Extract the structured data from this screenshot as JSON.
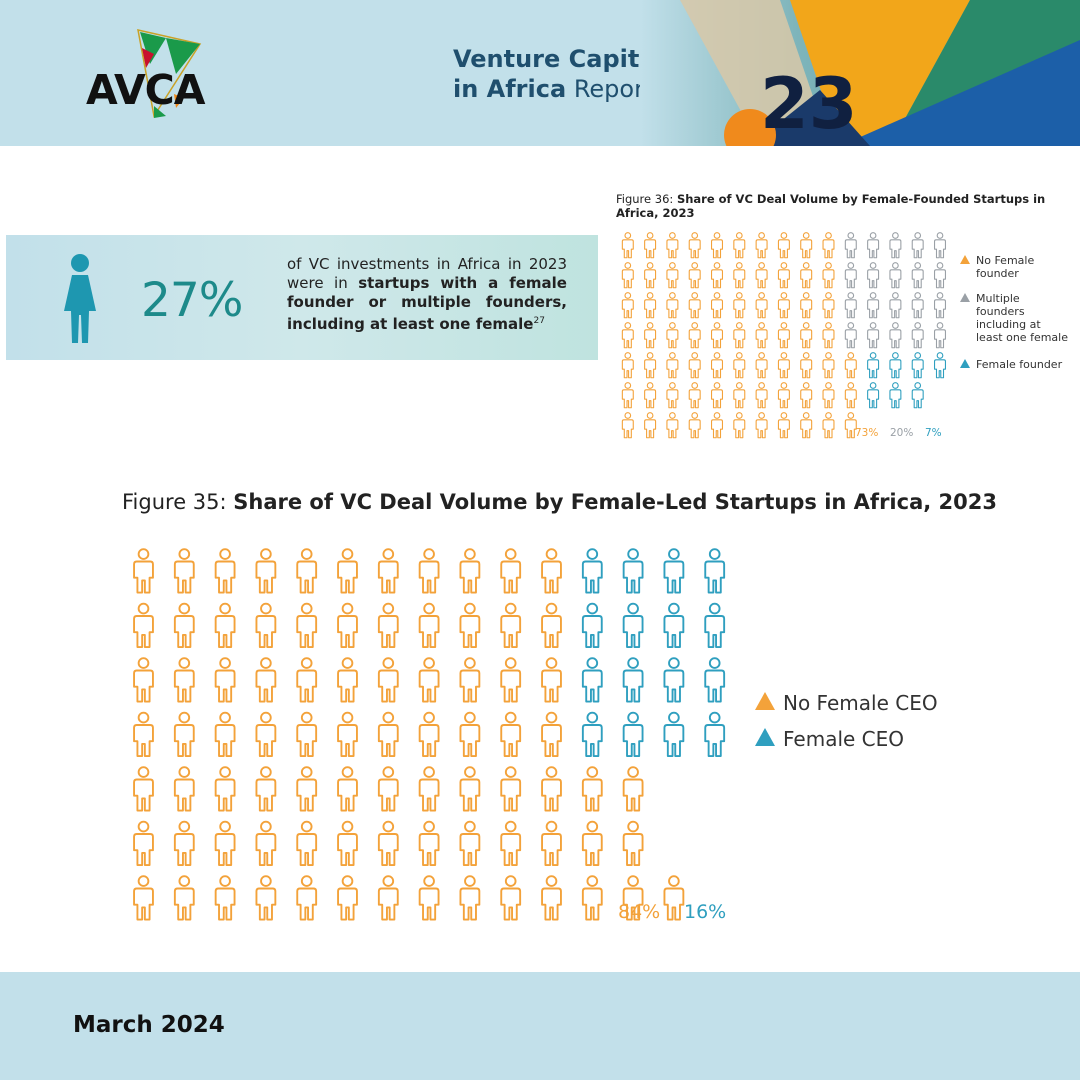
{
  "header": {
    "logo_text": "AVCA",
    "title_line1": "Venture Capital",
    "title_line2_bold": "in Africa",
    "title_line2_rest": "Report"
  },
  "stat": {
    "percent": "27%",
    "text_plain": "of VC investments in Africa in 2023 were in",
    "text_bold": "startups with a female founder or multiple founders, including at least one female",
    "footnote": "27"
  },
  "colors": {
    "orange": "#f3a23a",
    "grey": "#9aa0a6",
    "blue": "#2f9fbf",
    "teal_text": "#1d8a8a"
  },
  "chart_data": [
    {
      "type": "pictogram",
      "title_prefix": "Figure 36:",
      "title": "Share of VC Deal Volume by Female-Founded Startups in Africa, 2023",
      "units": 100,
      "series": [
        {
          "name": "No Female founder",
          "value": 73,
          "label": "73%",
          "color": "#f3a23a"
        },
        {
          "name": "Multiple founders including at least one female",
          "value": 20,
          "label": "20%",
          "color": "#9aa0a6"
        },
        {
          "name": "Female founder",
          "value": 7,
          "label": "7%",
          "color": "#2f9fbf"
        }
      ]
    },
    {
      "type": "pictogram",
      "title_prefix": "Figure 35:",
      "title": "Share of VC Deal Volume by Female-Led Startups in Africa, 2023",
      "units": 100,
      "series": [
        {
          "name": "No Female CEO",
          "value": 84,
          "label": "84%",
          "color": "#f3a23a"
        },
        {
          "name": "Female CEO",
          "value": 16,
          "label": "16%",
          "color": "#2f9fbf"
        }
      ]
    }
  ],
  "footer": {
    "date": "March 2024"
  }
}
